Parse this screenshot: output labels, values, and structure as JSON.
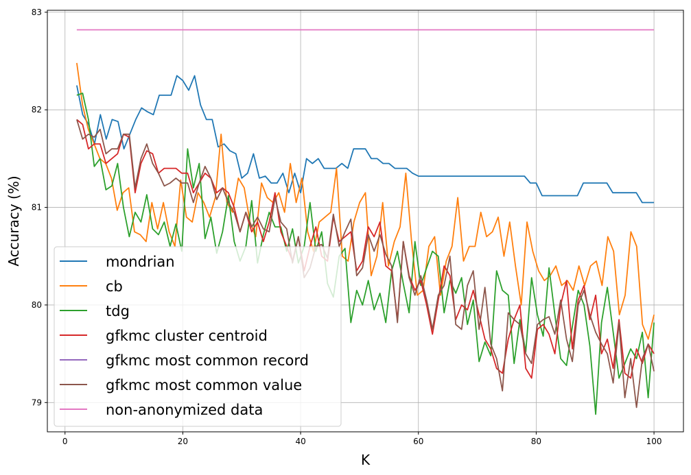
{
  "chart_data": {
    "type": "line",
    "title": "",
    "xlabel": "K",
    "ylabel": "Accuracy (%)",
    "xlim": [
      -3,
      105
    ],
    "ylim": [
      78.7,
      83.02
    ],
    "x_ticks": [
      0,
      20,
      40,
      60,
      80,
      100
    ],
    "y_ticks": [
      79,
      80,
      81,
      82,
      83
    ],
    "grid": true,
    "legend_position": "lower-left",
    "x_start": 2,
    "x_end": 100,
    "series": [
      {
        "name": "mondrian",
        "color": "#1f77b4",
        "values": [
          82.25,
          81.95,
          81.85,
          81.65,
          81.95,
          81.7,
          81.9,
          81.88,
          81.6,
          81.75,
          81.9,
          82.02,
          81.98,
          81.95,
          82.15,
          82.15,
          82.15,
          82.35,
          82.3,
          82.2,
          82.35,
          82.05,
          81.9,
          81.9,
          81.62,
          81.65,
          81.58,
          81.55,
          81.3,
          81.35,
          81.55,
          81.3,
          81.32,
          81.25,
          81.25,
          81.35,
          81.15,
          81.35,
          81.15,
          81.5,
          81.45,
          81.5,
          81.4,
          81.4,
          81.4,
          81.45,
          81.4,
          81.6,
          81.6,
          81.6,
          81.5,
          81.5,
          81.45,
          81.45,
          81.4,
          81.4,
          81.4,
          81.35,
          81.32,
          81.32,
          81.32,
          81.32,
          81.32,
          81.32,
          81.32,
          81.32,
          81.32,
          81.32,
          81.32,
          81.32,
          81.32,
          81.32,
          81.32,
          81.32,
          81.32,
          81.32,
          81.32,
          81.25,
          81.25,
          81.12,
          81.12,
          81.12,
          81.12,
          81.12,
          81.12,
          81.12,
          81.25,
          81.25,
          81.25,
          81.25,
          81.25,
          81.15,
          81.15,
          81.15,
          81.15,
          81.15,
          81.05,
          81.05,
          81.05
        ]
      },
      {
        "name": "cb",
        "color": "#ff7f0e",
        "values": [
          82.48,
          82.05,
          81.8,
          81.65,
          81.5,
          81.45,
          81.3,
          80.97,
          81.15,
          81.2,
          80.75,
          80.72,
          80.65,
          81.05,
          80.78,
          81.05,
          80.75,
          80.6,
          81.28,
          80.9,
          80.85,
          81.15,
          81.05,
          80.9,
          81.1,
          81.75,
          81.05,
          80.95,
          81.3,
          81.2,
          80.85,
          80.7,
          81.25,
          81.1,
          81.05,
          81.15,
          80.95,
          81.45,
          81.05,
          81.3,
          80.75,
          80.55,
          80.85,
          80.9,
          80.95,
          81.4,
          80.5,
          80.45,
          80.85,
          81.05,
          81.15,
          80.3,
          80.5,
          81.05,
          80.4,
          80.65,
          80.8,
          81.35,
          80.65,
          80.1,
          80.15,
          80.6,
          80.7,
          80.1,
          80.45,
          80.6,
          81.1,
          80.45,
          80.6,
          80.6,
          80.95,
          80.7,
          80.75,
          80.9,
          80.5,
          80.85,
          80.4,
          80.0,
          80.85,
          80.55,
          80.35,
          80.25,
          80.3,
          80.4,
          80.2,
          80.25,
          80.15,
          80.4,
          80.2,
          80.4,
          80.45,
          80.2,
          80.7,
          80.55,
          79.9,
          80.1,
          80.75,
          80.6,
          79.8,
          79.65,
          79.9
        ]
      },
      {
        "name": "tdg",
        "color": "#2ca02c",
        "values": [
          82.15,
          82.17,
          81.9,
          81.42,
          81.5,
          81.18,
          81.22,
          81.45,
          81.0,
          80.7,
          80.95,
          80.85,
          81.13,
          80.78,
          80.72,
          80.85,
          80.6,
          80.83,
          80.55,
          81.6,
          81.2,
          81.45,
          80.68,
          80.9,
          80.53,
          80.75,
          81.12,
          80.65,
          80.45,
          80.6,
          81.07,
          80.43,
          80.72,
          80.95,
          80.8,
          80.8,
          80.55,
          80.78,
          80.43,
          80.6,
          81.05,
          80.55,
          80.75,
          80.22,
          80.08,
          80.5,
          80.58,
          79.82,
          80.15,
          80.0,
          80.25,
          79.95,
          80.12,
          79.82,
          80.35,
          80.55,
          80.22,
          79.92,
          80.65,
          80.2,
          80.38,
          80.55,
          80.5,
          79.92,
          80.25,
          80.12,
          80.28,
          79.8,
          80.05,
          79.42,
          79.62,
          79.48,
          80.35,
          80.15,
          80.1,
          79.4,
          79.85,
          79.52,
          80.28,
          79.9,
          79.68,
          80.38,
          79.9,
          79.45,
          79.38,
          79.78,
          80.15,
          80.0,
          79.58,
          78.88,
          79.82,
          80.18,
          79.72,
          79.25,
          79.4,
          79.55,
          79.45,
          79.72,
          79.05,
          79.82
        ]
      },
      {
        "name": "gfkmc cluster centroid",
        "color": "#d62728",
        "values": [
          81.9,
          81.85,
          81.6,
          81.65,
          81.65,
          81.45,
          81.5,
          81.55,
          81.75,
          81.72,
          81.15,
          81.45,
          81.58,
          81.55,
          81.35,
          81.4,
          81.4,
          81.4,
          81.35,
          81.35,
          81.15,
          81.25,
          81.35,
          81.3,
          81.15,
          81.2,
          81.15,
          81.0,
          80.75,
          80.95,
          80.75,
          80.85,
          80.65,
          80.85,
          81.15,
          80.75,
          80.6,
          80.45,
          80.7,
          80.35,
          80.6,
          80.8,
          80.5,
          80.45,
          80.9,
          80.65,
          80.7,
          80.75,
          80.35,
          80.45,
          80.8,
          80.7,
          80.85,
          80.4,
          80.35,
          79.85,
          80.65,
          80.3,
          80.15,
          80.25,
          80.0,
          79.7,
          80.05,
          80.4,
          80.3,
          79.85,
          80.0,
          79.95,
          80.15,
          79.9,
          79.65,
          79.55,
          79.35,
          79.3,
          79.65,
          79.85,
          80.0,
          79.35,
          79.25,
          79.75,
          79.8,
          79.7,
          79.5,
          80.0,
          80.25,
          79.55,
          80.05,
          80.2,
          79.85,
          80.1,
          79.5,
          79.65,
          79.35,
          79.85,
          79.3,
          79.25,
          79.55,
          79.4,
          79.6,
          79.5
        ]
      },
      {
        "name": "gfkmc most common record",
        "color": "#9467bd",
        "values": []
      },
      {
        "name": "gfkmc most common value",
        "color": "#8c564b",
        "values": [
          81.9,
          81.7,
          81.75,
          81.72,
          81.8,
          81.55,
          81.6,
          81.6,
          81.75,
          81.75,
          81.2,
          81.5,
          81.65,
          81.45,
          81.35,
          81.22,
          81.25,
          81.3,
          81.25,
          81.25,
          81.05,
          81.25,
          81.42,
          81.3,
          81.08,
          81.2,
          81.05,
          80.95,
          80.75,
          80.95,
          80.8,
          80.9,
          80.78,
          80.75,
          81.1,
          80.85,
          80.78,
          80.43,
          80.7,
          80.28,
          80.38,
          80.6,
          80.62,
          80.48,
          80.93,
          80.6,
          80.75,
          80.88,
          80.3,
          80.38,
          80.72,
          80.55,
          80.72,
          80.52,
          80.4,
          79.82,
          80.65,
          80.28,
          80.1,
          80.3,
          80.05,
          79.75,
          80.1,
          80.2,
          80.5,
          79.8,
          79.75,
          80.2,
          80.35,
          79.75,
          80.18,
          79.6,
          79.45,
          79.12,
          79.92,
          79.85,
          79.8,
          79.5,
          79.4,
          79.8,
          79.85,
          79.88,
          79.7,
          80.05,
          79.65,
          79.42,
          80.0,
          80.15,
          79.9,
          79.72,
          79.6,
          79.5,
          79.2,
          79.82,
          79.05,
          79.45,
          78.95,
          79.45,
          79.6,
          79.32
        ]
      },
      {
        "name": "non-anonymized data",
        "color": "#e377c2",
        "values": [
          82.82,
          82.82
        ]
      }
    ]
  }
}
